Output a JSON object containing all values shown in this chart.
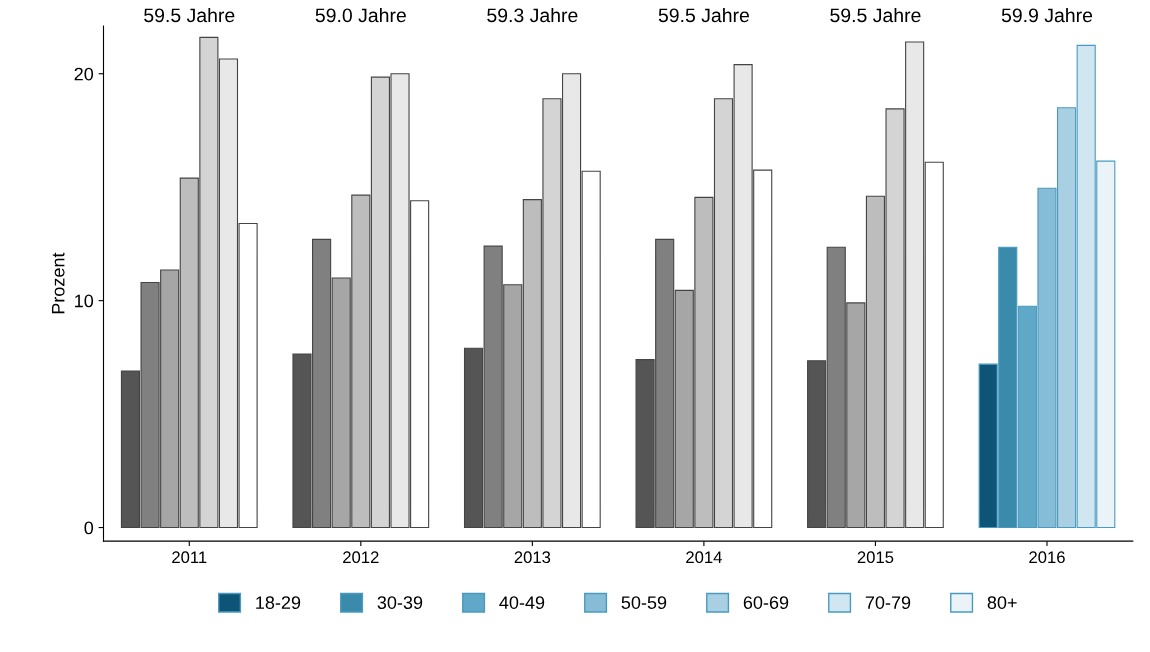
{
  "chart_data": {
    "type": "bar",
    "ylabel": "Prozent",
    "categories": [
      "2011",
      "2012",
      "2013",
      "2014",
      "2015",
      "2016"
    ],
    "series": [
      {
        "name": "18-29",
        "color": "#0d5477",
        "colors": [
          "#555555",
          "#555555",
          "#555555",
          "#555555",
          "#555555",
          "#0d5477"
        ],
        "values": [
          6.9,
          7.65,
          7.9,
          7.4,
          7.35,
          7.2
        ]
      },
      {
        "name": "30-39",
        "color": "#3a8aab",
        "colors": [
          "#808080",
          "#808080",
          "#808080",
          "#808080",
          "#808080",
          "#3a8aab"
        ],
        "values": [
          10.8,
          12.7,
          12.4,
          12.7,
          12.35,
          12.35
        ]
      },
      {
        "name": "40-49",
        "color": "#5fa8c8",
        "colors": [
          "#a6a6a6",
          "#a6a6a6",
          "#a6a6a6",
          "#a6a6a6",
          "#a6a6a6",
          "#5fa8c8"
        ],
        "values": [
          11.35,
          11.0,
          10.7,
          10.45,
          9.9,
          9.75
        ]
      },
      {
        "name": "50-59",
        "color": "#87bcd6",
        "colors": [
          "#bdbdbd",
          "#bdbdbd",
          "#bdbdbd",
          "#bdbdbd",
          "#bdbdbd",
          "#87bcd6"
        ],
        "values": [
          15.4,
          14.65,
          14.45,
          14.55,
          14.6,
          14.95
        ]
      },
      {
        "name": "60-69",
        "color": "#a9d0e2",
        "colors": [
          "#d4d4d4",
          "#d4d4d4",
          "#d4d4d4",
          "#d4d4d4",
          "#d4d4d4",
          "#a9d0e2"
        ],
        "values": [
          21.6,
          19.85,
          18.9,
          18.9,
          18.45,
          18.5
        ]
      },
      {
        "name": "70-79",
        "color": "#d0e6f0",
        "colors": [
          "#e8e8e8",
          "#e8e8e8",
          "#e8e8e8",
          "#e8e8e8",
          "#e8e8e8",
          "#d0e6f0"
        ],
        "values": [
          20.65,
          20.0,
          20.0,
          20.4,
          21.4,
          21.25
        ]
      },
      {
        "name": "80+",
        "color": "#e9f3f8",
        "colors": [
          "#ffffff",
          "#ffffff",
          "#ffffff",
          "#ffffff",
          "#ffffff",
          "#e9f3f8"
        ],
        "values": [
          13.4,
          14.4,
          15.7,
          15.75,
          16.1,
          16.15
        ]
      }
    ],
    "annotations": [
      "59.5 Jahre",
      "59.0 Jahre",
      "59.3 Jahre",
      "59.5 Jahre",
      "59.5 Jahre",
      "59.9 Jahre"
    ],
    "ylim": [
      -0.6,
      22.1
    ],
    "yticks": [
      0,
      10,
      20
    ],
    "grid": false,
    "legend": "bottom"
  }
}
